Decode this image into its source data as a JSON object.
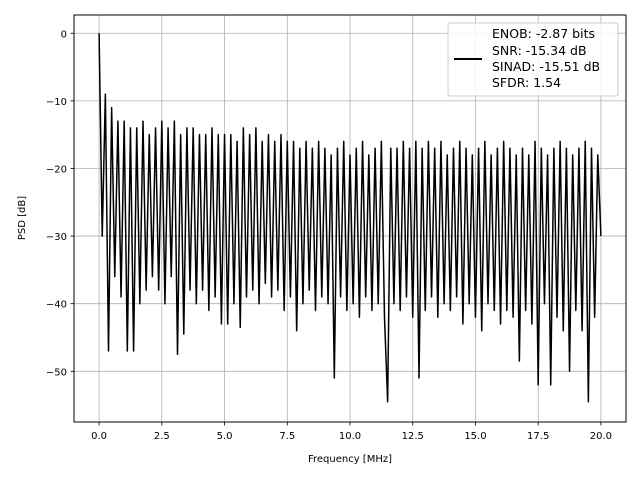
{
  "chart_data": {
    "type": "line",
    "title": "",
    "xlabel": "Frequency [MHz]",
    "ylabel": "PSD [dB]",
    "xlim": [
      -1.0,
      21.0
    ],
    "ylim": [
      -57.5,
      2.7
    ],
    "grid": true,
    "xticks": [
      0.0,
      2.5,
      5.0,
      7.5,
      10.0,
      12.5,
      15.0,
      17.5,
      20.0
    ],
    "xtick_labels": [
      "0.0",
      "2.5",
      "5.0",
      "7.5",
      "10.0",
      "12.5",
      "15.0",
      "17.5",
      "20.0"
    ],
    "yticks": [
      0,
      -10,
      -20,
      -30,
      -40,
      -50
    ],
    "ytick_labels": [
      "0",
      "−10",
      "−20",
      "−30",
      "−40",
      "−50"
    ],
    "legend": {
      "placement": "top-right",
      "entries": [
        "ENOB: -2.87 bits",
        "SNR: -15.34 dB",
        "SINAD: -15.51 dB",
        "SFDR: 1.54"
      ]
    },
    "series": [
      {
        "name": "PSD",
        "color": "#000000",
        "x_start": 0.0,
        "x_step": 0.125,
        "values": [
          0,
          -30,
          -9,
          -47,
          -11,
          -36,
          -13,
          -39,
          -13,
          -47,
          -14,
          -47,
          -14,
          -40,
          -13,
          -38,
          -15,
          -36,
          -14,
          -38,
          -13,
          -40,
          -14,
          -36,
          -13,
          -47.5,
          -15,
          -44.5,
          -14,
          -38,
          -14,
          -40,
          -15,
          -38,
          -15,
          -41,
          -14,
          -39,
          -15,
          -43,
          -15,
          -43,
          -15,
          -40,
          -16,
          -43.5,
          -14,
          -39,
          -15,
          -38,
          -14,
          -40,
          -16,
          -37,
          -15,
          -39,
          -16,
          -38,
          -15,
          -41,
          -16,
          -39,
          -16,
          -44,
          -17,
          -40,
          -16,
          -38,
          -17,
          -41,
          -16,
          -39,
          -17,
          -40,
          -18,
          -51,
          -17,
          -39,
          -16,
          -41,
          -18,
          -40,
          -17,
          -42,
          -16,
          -39,
          -18,
          -41,
          -17,
          -40,
          -16,
          -42,
          -54.5,
          -17,
          -40,
          -17,
          -41,
          -16,
          -39,
          -17,
          -42,
          -16,
          -51,
          -17,
          -41,
          -16,
          -39,
          -17,
          -42,
          -16,
          -40,
          -18,
          -41,
          -17,
          -39,
          -16,
          -43,
          -17,
          -40,
          -18,
          -42,
          -17,
          -44,
          -16,
          -40,
          -18,
          -41,
          -17,
          -43,
          -16,
          -41,
          -17,
          -42,
          -18,
          -48.5,
          -17,
          -41,
          -18,
          -43,
          -16,
          -52,
          -17,
          -40,
          -18,
          -52,
          -17,
          -42,
          -16,
          -44,
          -17,
          -50,
          -18,
          -41,
          -17,
          -44,
          -16,
          -54.5,
          -17,
          -42,
          -18,
          -30
        ]
      }
    ]
  }
}
